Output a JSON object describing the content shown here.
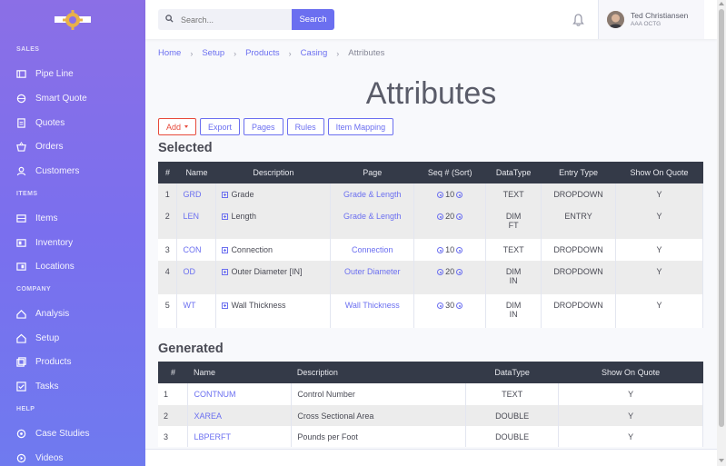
{
  "search": {
    "placeholder": "Search...",
    "button_label": "Search"
  },
  "user": {
    "name": "Ted Christiansen",
    "company": "AAA OCTG"
  },
  "sidebar": {
    "sections": [
      {
        "heading": "SALES",
        "items": [
          {
            "label": "Pipe Line",
            "icon": "pipe-icon"
          },
          {
            "label": "Smart Quote",
            "icon": "globe-icon"
          },
          {
            "label": "Quotes",
            "icon": "document-icon"
          },
          {
            "label": "Orders",
            "icon": "basket-icon"
          },
          {
            "label": "Customers",
            "icon": "user-icon"
          }
        ]
      },
      {
        "heading": "ITEMS",
        "items": [
          {
            "label": "Items",
            "icon": "items-icon"
          },
          {
            "label": "Inventory",
            "icon": "inventory-icon"
          },
          {
            "label": "Locations",
            "icon": "locations-icon"
          }
        ]
      },
      {
        "heading": "COMPANY",
        "items": [
          {
            "label": "Analysis",
            "icon": "chart-icon"
          },
          {
            "label": "Setup",
            "icon": "home-icon"
          },
          {
            "label": "Products",
            "icon": "products-icon"
          },
          {
            "label": "Tasks",
            "icon": "tasks-icon"
          }
        ]
      },
      {
        "heading": "HELP",
        "items": [
          {
            "label": "Case Studies",
            "icon": "case-icon"
          },
          {
            "label": "Videos",
            "icon": "video-icon"
          }
        ]
      }
    ]
  },
  "breadcrumb": [
    "Home",
    "Setup",
    "Products",
    "Casing",
    "Attributes"
  ],
  "page_title": "Attributes",
  "buttons": {
    "add": "Add",
    "export": "Export",
    "pages": "Pages",
    "rules": "Rules",
    "item_mapping": "Item Mapping"
  },
  "selected": {
    "title": "Selected",
    "headers": [
      "#",
      "Name",
      "Description",
      "Page",
      "Seq # (Sort)",
      "DataType",
      "Entry Type",
      "Show On Quote"
    ],
    "rows": [
      {
        "num": "1",
        "name": "GRD",
        "desc": "Grade",
        "page": "Grade & Length",
        "seq": "10",
        "dtype": "TEXT",
        "dtype2": "",
        "entry": "DROPDOWN",
        "show": "Y"
      },
      {
        "num": "2",
        "name": "LEN",
        "desc": "Length",
        "page": "Grade & Length",
        "seq": "20",
        "dtype": "DIM",
        "dtype2": "FT",
        "entry": "ENTRY",
        "show": "Y"
      },
      {
        "num": "3",
        "name": "CON",
        "desc": "Connection",
        "page": "Connection",
        "seq": "10",
        "dtype": "TEXT",
        "dtype2": "",
        "entry": "DROPDOWN",
        "show": "Y"
      },
      {
        "num": "4",
        "name": "OD",
        "desc": "Outer Diameter [IN]",
        "page": "Outer Diameter",
        "seq": "20",
        "dtype": "DIM",
        "dtype2": "IN",
        "entry": "DROPDOWN",
        "show": "Y"
      },
      {
        "num": "5",
        "name": "WT",
        "desc": "Wall Thickness",
        "page": "Wall Thickness",
        "seq": "30",
        "dtype": "DIM",
        "dtype2": "IN",
        "entry": "DROPDOWN",
        "show": "Y"
      }
    ]
  },
  "generated": {
    "title": "Generated",
    "headers": [
      "#",
      "Name",
      "Description",
      "DataType",
      "Show On Quote"
    ],
    "rows": [
      {
        "num": "1",
        "name": "CONTNUM",
        "desc": "Control Number",
        "dtype": "TEXT",
        "show": "Y"
      },
      {
        "num": "2",
        "name": "XAREA",
        "desc": "Cross Sectional Area",
        "dtype": "DOUBLE",
        "show": "Y"
      },
      {
        "num": "3",
        "name": "LBPERFT",
        "desc": "Pounds per Foot",
        "dtype": "DOUBLE",
        "show": "Y"
      }
    ]
  },
  "colors": {
    "accent": "#6b6ff0",
    "danger": "#e74a3b",
    "table_header": "#343a48"
  }
}
